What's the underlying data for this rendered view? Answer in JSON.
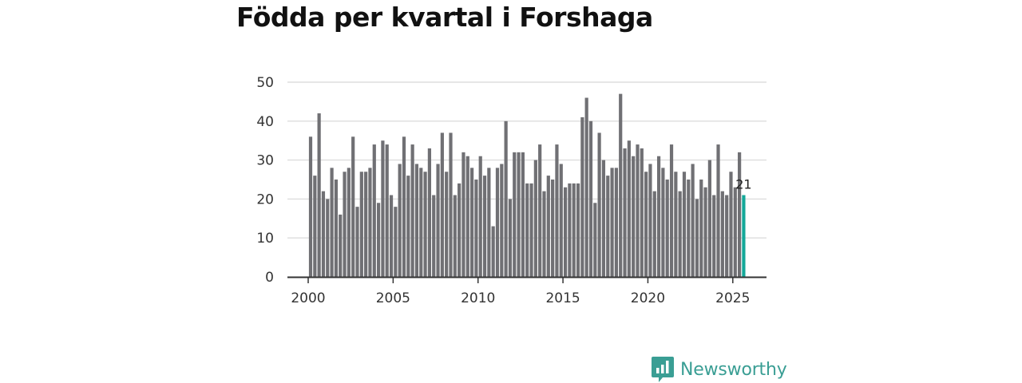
{
  "chart_data": {
    "type": "bar",
    "title": "Födda per kvartal i Forshaga",
    "xlabel": "",
    "ylabel": "",
    "start_year": 2000,
    "x_ticks": [
      "2000",
      "2005",
      "2010",
      "2015",
      "2020",
      "2025"
    ],
    "y_ticks": [
      "0",
      "10",
      "20",
      "30",
      "40",
      "50"
    ],
    "ylim": [
      0,
      50
    ],
    "grid": true,
    "highlight_index": 102,
    "highlight_label": "21",
    "colors": {
      "bar": "#707074",
      "highlight": "#14a899",
      "grid": "#dddddd",
      "axis": "#333333"
    },
    "values": [
      36,
      26,
      42,
      22,
      20,
      28,
      25,
      16,
      27,
      28,
      36,
      18,
      27,
      27,
      28,
      34,
      19,
      35,
      34,
      21,
      18,
      29,
      36,
      26,
      34,
      29,
      28,
      27,
      33,
      21,
      29,
      37,
      27,
      37,
      21,
      24,
      32,
      31,
      28,
      25,
      31,
      26,
      28,
      13,
      28,
      29,
      40,
      20,
      32,
      32,
      32,
      24,
      24,
      30,
      34,
      22,
      26,
      25,
      34,
      29,
      23,
      24,
      24,
      24,
      41,
      46,
      40,
      19,
      37,
      30,
      26,
      28,
      28,
      47,
      33,
      35,
      31,
      34,
      33,
      27,
      29,
      22,
      31,
      28,
      25,
      34,
      27,
      22,
      27,
      25,
      29,
      20,
      25,
      23,
      30,
      21,
      34,
      22,
      21,
      27,
      23,
      32,
      21
    ]
  },
  "brand": {
    "name": "Newsworthy",
    "icon": "bar-chart-icon",
    "color": "#3a9e94"
  }
}
